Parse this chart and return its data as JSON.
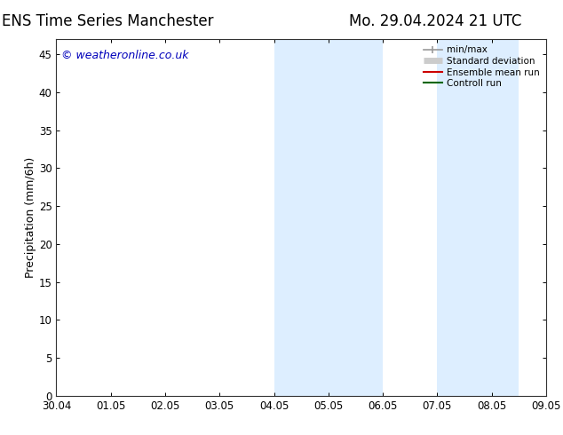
{
  "title_left": "ENS Time Series Manchester",
  "title_right": "Mo. 29.04.2024 21 UTC",
  "ylabel": "Precipitation (mm/6h)",
  "watermark": "© weatheronline.co.uk",
  "xticklabels": [
    "30.04",
    "01.05",
    "02.05",
    "03.05",
    "04.05",
    "05.05",
    "06.05",
    "07.05",
    "08.05",
    "09.05"
  ],
  "yticks": [
    0,
    5,
    10,
    15,
    20,
    25,
    30,
    35,
    40,
    45
  ],
  "ylim": [
    0,
    47
  ],
  "xlim": [
    0,
    9
  ],
  "shaded_bands": [
    {
      "x_start": 4.0,
      "x_end": 6.0
    },
    {
      "x_start": 7.0,
      "x_end": 8.5
    }
  ],
  "shade_color": "#ddeeff",
  "background_color": "#ffffff",
  "legend_entries": [
    {
      "label": "min/max",
      "color": "#999999",
      "lw": 1.2,
      "type": "errorbar"
    },
    {
      "label": "Standard deviation",
      "color": "#cccccc",
      "lw": 5,
      "type": "band"
    },
    {
      "label": "Ensemble mean run",
      "color": "#cc0000",
      "lw": 1.5,
      "type": "line"
    },
    {
      "label": "Controll run",
      "color": "#006600",
      "lw": 1.5,
      "type": "line"
    }
  ],
  "title_fontsize": 12,
  "tick_fontsize": 8.5,
  "ylabel_fontsize": 9,
  "watermark_color": "#0000bb",
  "watermark_fontsize": 9
}
